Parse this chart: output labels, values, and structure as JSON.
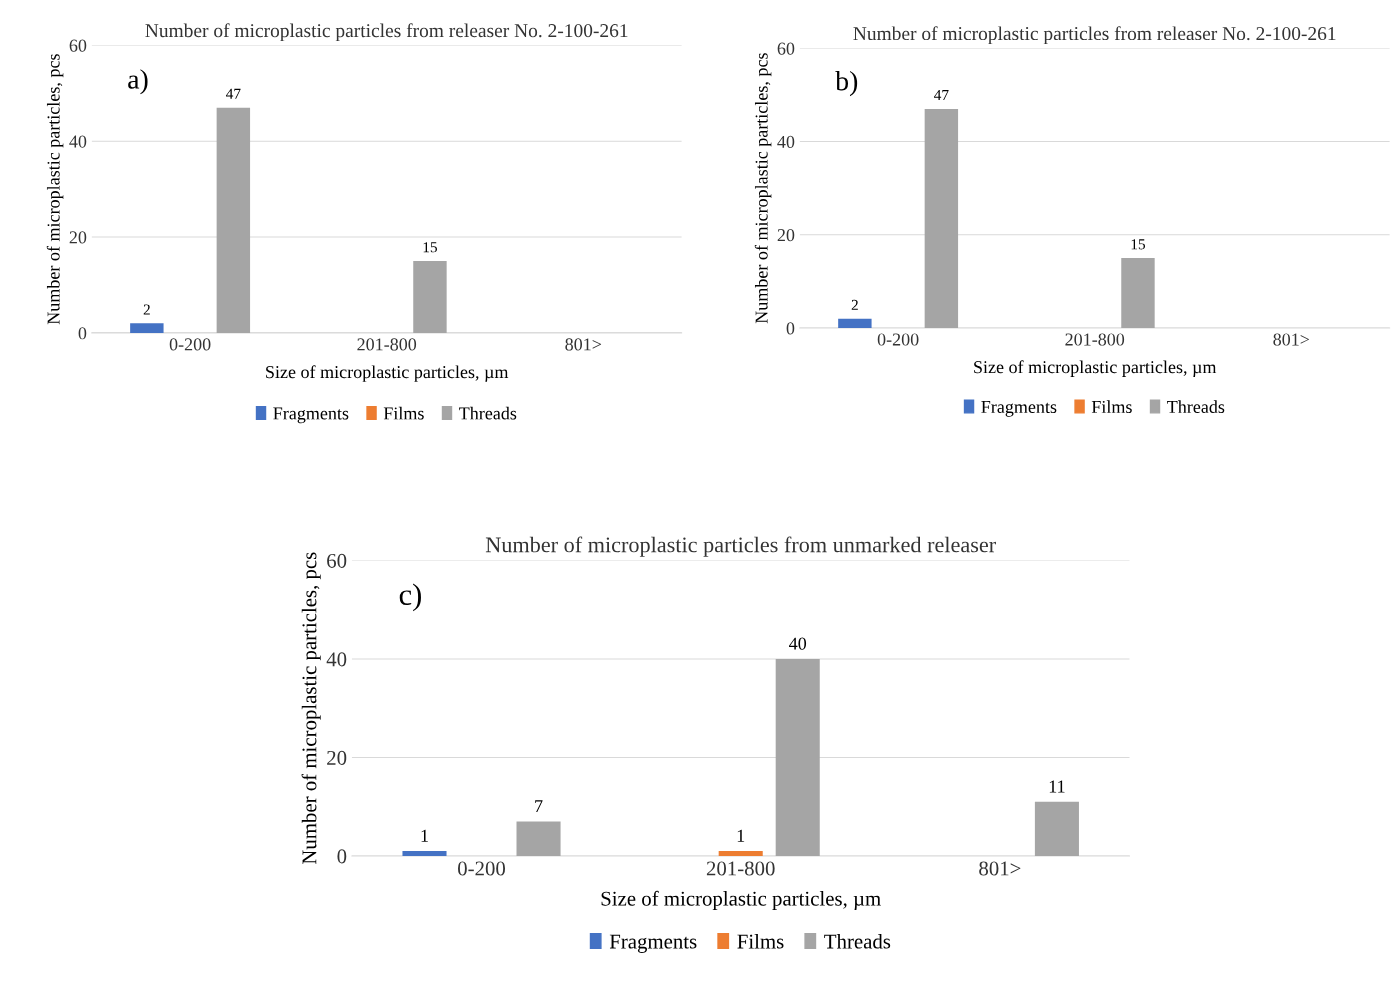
{
  "chart_data": [
    {
      "type": "bar",
      "title": "Number of microplastic particles from releaser No. 2-100-261",
      "xlabel": "Size of microplastic particles, µm",
      "ylabel": "Number of microplastic particles, pcs",
      "categories": [
        "0-200",
        "201-800",
        "801>"
      ],
      "series": [
        {
          "name": "Fragments",
          "color": "#4472c4",
          "values": [
            2,
            null,
            null
          ]
        },
        {
          "name": "Films",
          "color": "#ed7d31",
          "values": [
            null,
            null,
            null
          ]
        },
        {
          "name": "Threads",
          "color": "#a5a5a5",
          "values": [
            47,
            15,
            null
          ]
        }
      ],
      "ylim": [
        0,
        60
      ],
      "yticks": [
        0,
        20,
        40,
        60
      ],
      "grid": "y",
      "legend": "bottom",
      "data_labels": true,
      "annotations": [
        "a)"
      ]
    },
    {
      "type": "bar",
      "title": "Number of microplastic particles from releaser No. 2-100-261",
      "xlabel": "Size of microplastic particles, µm",
      "ylabel": "Number of microplastic particles, pcs",
      "categories": [
        "0-200",
        "201-800",
        "801>"
      ],
      "series": [
        {
          "name": "Fragments",
          "color": "#4472c4",
          "values": [
            2,
            null,
            null
          ]
        },
        {
          "name": "Films",
          "color": "#ed7d31",
          "values": [
            null,
            null,
            null
          ]
        },
        {
          "name": "Threads",
          "color": "#a5a5a5",
          "values": [
            47,
            15,
            null
          ]
        }
      ],
      "ylim": [
        0,
        60
      ],
      "yticks": [
        0,
        20,
        40,
        60
      ],
      "grid": "y",
      "legend": "bottom",
      "data_labels": true,
      "annotations": [
        "b)"
      ]
    },
    {
      "type": "bar",
      "title": "Number of microplastic particles from unmarked releaser",
      "xlabel": "Size of microplastic particles, µm",
      "ylabel": "Number of microplastic particles, pcs",
      "categories": [
        "0-200",
        "201-800",
        "801>"
      ],
      "series": [
        {
          "name": "Fragments",
          "color": "#4472c4",
          "values": [
            1,
            null,
            null
          ]
        },
        {
          "name": "Films",
          "color": "#ed7d31",
          "values": [
            null,
            1,
            null
          ]
        },
        {
          "name": "Threads",
          "color": "#a5a5a5",
          "values": [
            7,
            40,
            11
          ]
        }
      ],
      "ylim": [
        0,
        60
      ],
      "yticks": [
        0,
        20,
        40,
        60
      ],
      "grid": "y",
      "legend": "bottom",
      "data_labels": true,
      "annotations": [
        "c)"
      ]
    }
  ]
}
